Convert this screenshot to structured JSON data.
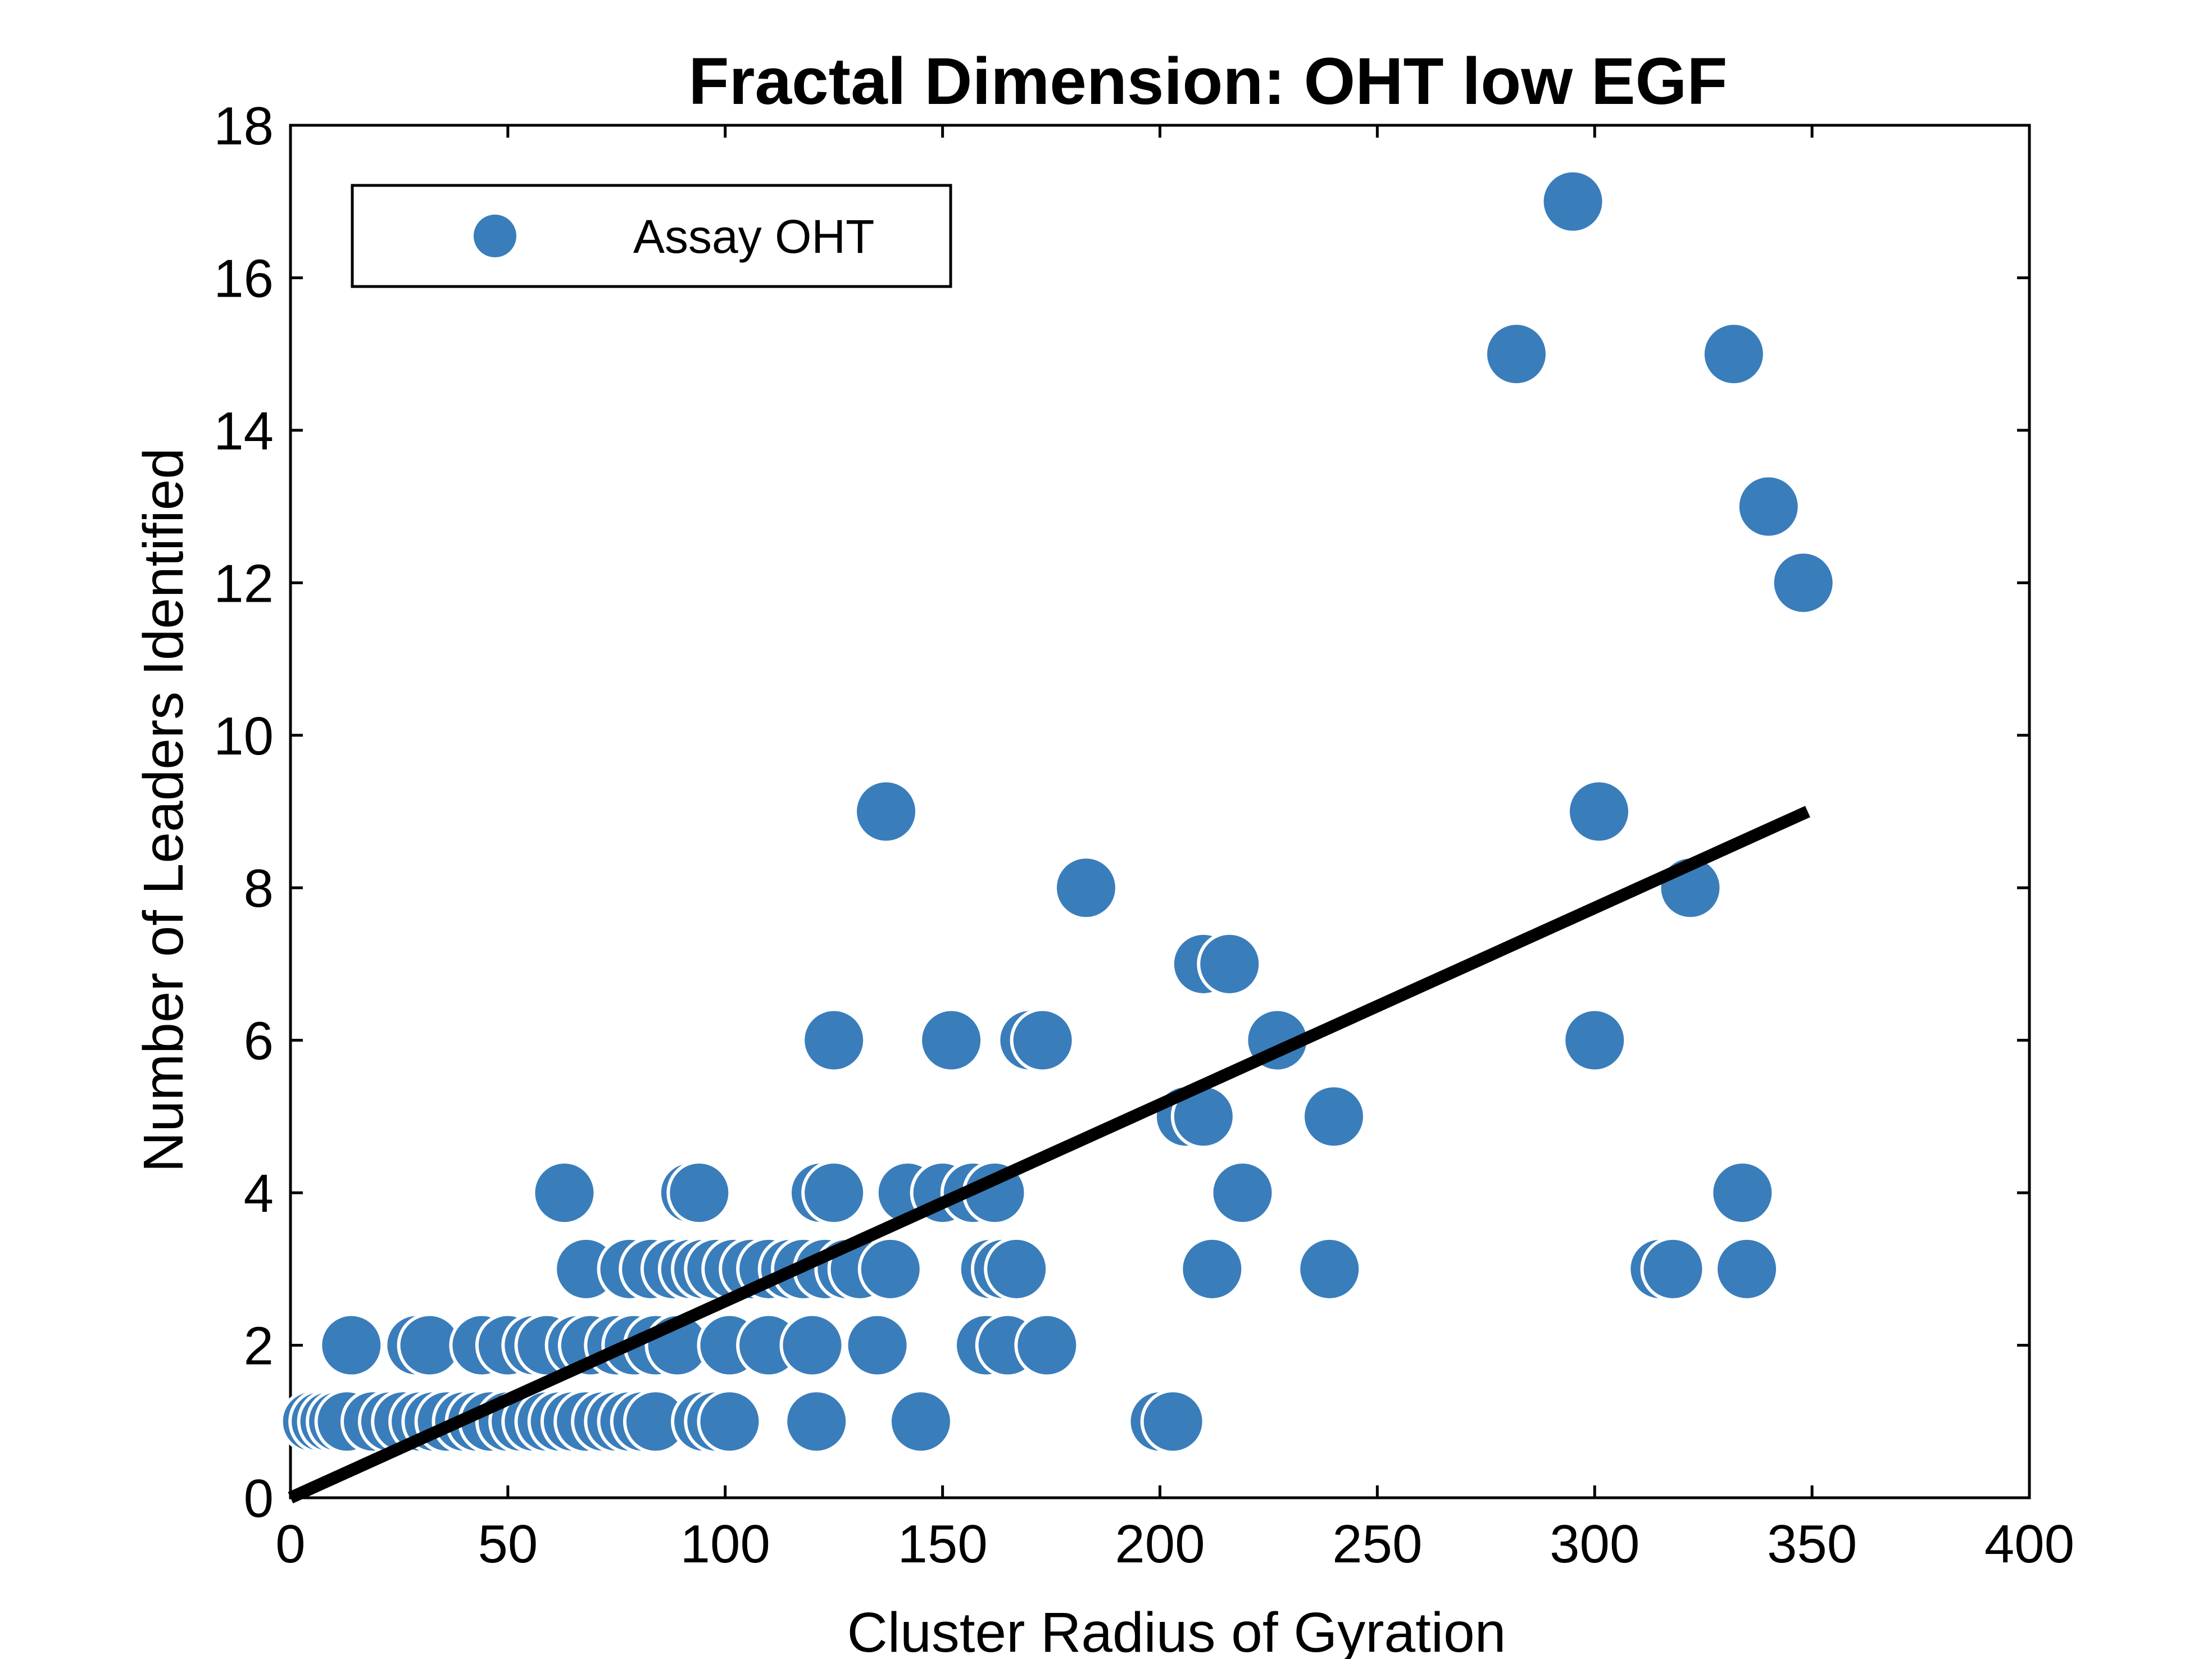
{
  "chart_data": {
    "type": "scatter",
    "title": "Fractal Dimension: OHT low EGF",
    "xlabel": "Cluster Radius of Gyration",
    "ylabel": "Number of Leaders Identified",
    "xlim": [
      0,
      400
    ],
    "ylim": [
      0,
      18
    ],
    "xticks": [
      "0",
      "50",
      "100",
      "150",
      "200",
      "250",
      "300",
      "350",
      "400"
    ],
    "yticks": [
      "0",
      "2",
      "4",
      "6",
      "8",
      "10",
      "12",
      "14",
      "16",
      "18"
    ],
    "grid": false,
    "legend_position": "top-left",
    "series": [
      {
        "name": "Assay OHT",
        "color": "#3a7dbb",
        "points": [
          [
            5,
            1
          ],
          [
            7,
            1
          ],
          [
            9,
            1
          ],
          [
            11,
            1
          ],
          [
            13,
            1
          ],
          [
            19,
            1
          ],
          [
            23,
            1
          ],
          [
            26,
            1
          ],
          [
            30,
            1
          ],
          [
            33,
            1
          ],
          [
            36,
            1
          ],
          [
            40,
            1
          ],
          [
            43,
            1
          ],
          [
            46,
            1
          ],
          [
            50,
            1
          ],
          [
            53,
            1
          ],
          [
            56,
            1
          ],
          [
            59,
            1
          ],
          [
            62,
            1
          ],
          [
            65,
            1
          ],
          [
            68,
            1
          ],
          [
            72,
            1
          ],
          [
            75,
            1
          ],
          [
            78,
            1
          ],
          [
            81,
            1
          ],
          [
            84,
            1
          ],
          [
            95,
            1
          ],
          [
            98,
            1
          ],
          [
            101,
            1
          ],
          [
            121,
            1
          ],
          [
            145,
            1
          ],
          [
            200,
            1
          ],
          [
            203,
            1
          ],
          [
            14,
            2
          ],
          [
            29,
            2
          ],
          [
            32,
            2
          ],
          [
            44,
            2
          ],
          [
            50,
            2
          ],
          [
            56,
            2
          ],
          [
            59,
            2
          ],
          [
            66,
            2
          ],
          [
            69,
            2
          ],
          [
            75,
            2
          ],
          [
            79,
            2
          ],
          [
            84,
            2
          ],
          [
            89,
            2
          ],
          [
            101,
            2
          ],
          [
            110,
            2
          ],
          [
            120,
            2
          ],
          [
            135,
            2
          ],
          [
            160,
            2
          ],
          [
            165,
            2
          ],
          [
            174,
            2
          ],
          [
            68,
            3
          ],
          [
            78,
            3
          ],
          [
            83,
            3
          ],
          [
            88,
            3
          ],
          [
            92,
            3
          ],
          [
            95,
            3
          ],
          [
            98,
            3
          ],
          [
            102,
            3
          ],
          [
            106,
            3
          ],
          [
            110,
            3
          ],
          [
            115,
            3
          ],
          [
            118,
            3
          ],
          [
            123,
            3
          ],
          [
            128,
            3
          ],
          [
            131,
            3
          ],
          [
            138,
            3
          ],
          [
            161,
            3
          ],
          [
            164,
            3
          ],
          [
            167,
            3
          ],
          [
            212,
            3
          ],
          [
            239,
            3
          ],
          [
            315,
            3
          ],
          [
            318,
            3
          ],
          [
            335,
            3
          ],
          [
            63,
            4
          ],
          [
            92,
            4
          ],
          [
            94,
            4
          ],
          [
            122,
            4
          ],
          [
            125,
            4
          ],
          [
            142,
            4
          ],
          [
            150,
            4
          ],
          [
            157,
            4
          ],
          [
            162,
            4
          ],
          [
            219,
            4
          ],
          [
            334,
            4
          ],
          [
            206,
            5
          ],
          [
            210,
            5
          ],
          [
            240,
            5
          ],
          [
            125,
            6
          ],
          [
            152,
            6
          ],
          [
            170,
            6
          ],
          [
            173,
            6
          ],
          [
            227,
            6
          ],
          [
            300,
            6
          ],
          [
            210,
            7
          ],
          [
            216,
            7
          ],
          [
            183,
            8
          ],
          [
            322,
            8
          ],
          [
            137,
            9
          ],
          [
            301,
            9
          ],
          [
            348,
            12
          ],
          [
            340,
            13
          ],
          [
            282,
            15
          ],
          [
            332,
            15
          ],
          [
            295,
            17
          ]
        ]
      }
    ],
    "fit_line": {
      "x": [
        0,
        349
      ],
      "y": [
        0,
        9
      ],
      "color": "#000000"
    }
  }
}
